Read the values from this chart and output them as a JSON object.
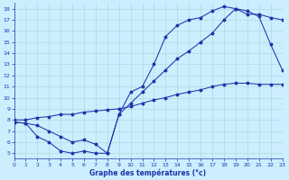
{
  "title": "Graphe des températures (°c)",
  "bg_color": "#cceeff",
  "grid_color": "#aadddd",
  "line_color": "#2233aa",
  "xlim": [
    0,
    23
  ],
  "ylim": [
    4.5,
    18.5
  ],
  "xticks": [
    0,
    1,
    2,
    3,
    4,
    5,
    6,
    7,
    8,
    9,
    10,
    11,
    12,
    13,
    14,
    15,
    16,
    17,
    18,
    19,
    20,
    21,
    22,
    23
  ],
  "yticks": [
    5,
    6,
    7,
    8,
    9,
    10,
    11,
    12,
    13,
    14,
    15,
    16,
    17,
    18
  ],
  "line1_x": [
    0,
    1,
    2,
    3,
    4,
    5,
    6,
    7,
    8,
    9,
    10,
    11,
    12,
    13,
    14,
    15,
    16,
    17,
    18,
    19,
    20,
    21,
    22,
    23
  ],
  "line1_y": [
    7.8,
    7.7,
    7.5,
    7.0,
    6.5,
    6.0,
    6.2,
    5.8,
    5.0,
    8.5,
    10.5,
    11.0,
    13.0,
    15.5,
    16.5,
    17.0,
    17.2,
    17.8,
    18.2,
    18.0,
    17.5,
    17.5,
    17.2,
    17.0
  ],
  "line2_x": [
    0,
    1,
    2,
    3,
    4,
    5,
    6,
    7,
    8,
    9,
    10,
    11,
    12,
    13,
    14,
    15,
    16,
    17,
    18,
    19,
    20,
    21,
    22,
    23
  ],
  "line2_y": [
    8.0,
    8.0,
    8.2,
    8.3,
    8.5,
    8.5,
    8.7,
    8.8,
    8.9,
    9.0,
    9.2,
    9.5,
    9.8,
    10.0,
    10.3,
    10.5,
    10.7,
    11.0,
    11.2,
    11.3,
    11.3,
    11.2,
    11.2,
    11.2
  ],
  "line3_x": [
    0,
    1,
    2,
    3,
    4,
    5,
    6,
    7,
    8,
    9,
    10,
    11,
    12,
    13,
    14,
    15,
    16,
    17,
    18,
    19,
    20,
    21,
    22,
    23
  ],
  "line3_y": [
    7.8,
    7.7,
    6.5,
    6.0,
    5.2,
    5.0,
    5.2,
    5.0,
    5.0,
    8.5,
    9.5,
    10.5,
    11.5,
    12.5,
    13.5,
    14.2,
    15.0,
    15.8,
    17.0,
    18.0,
    17.8,
    17.3,
    14.8,
    12.5
  ]
}
